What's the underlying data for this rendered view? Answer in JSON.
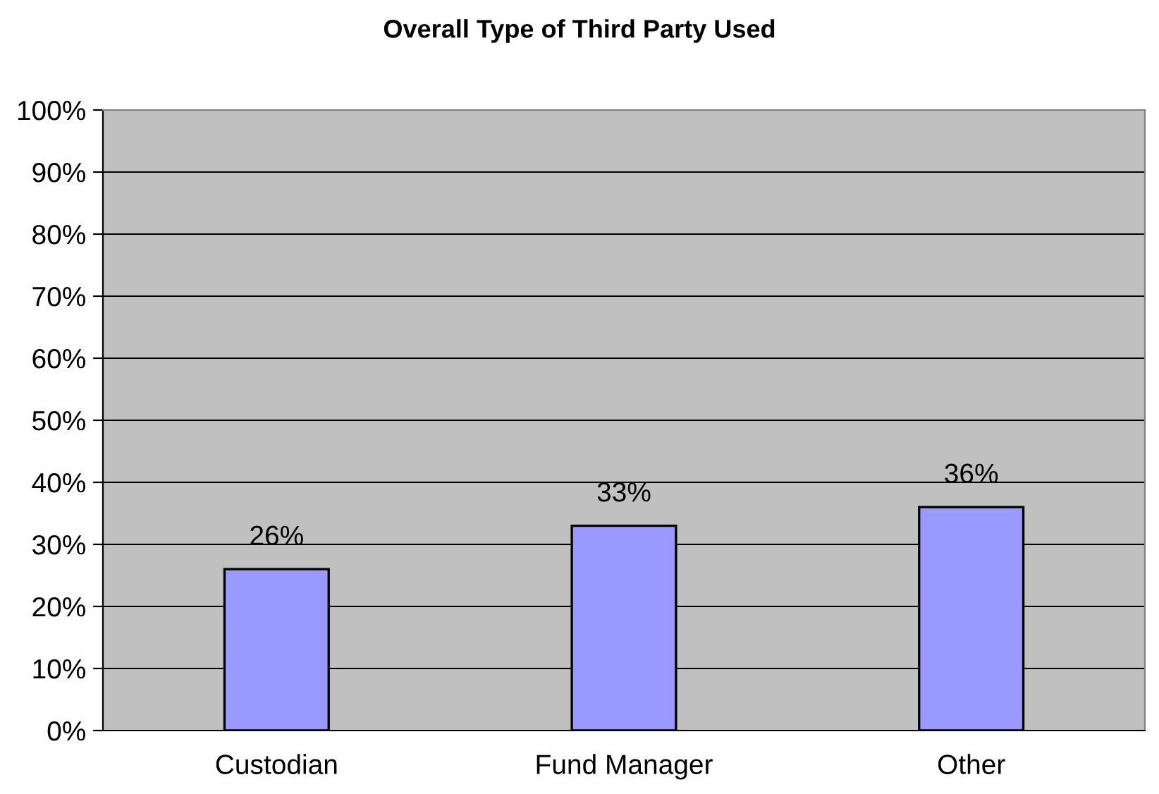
{
  "chart_data": {
    "type": "bar",
    "title": "Overall Type of Third Party Used",
    "categories": [
      "Custodian",
      "Fund Manager",
      "Other"
    ],
    "values": [
      26,
      33,
      36
    ],
    "value_labels": [
      "26%",
      "33%",
      "36%"
    ],
    "color": "#9999ff",
    "ylim": [
      0,
      100
    ],
    "yticks": [
      {
        "value": 0,
        "label": "0%"
      },
      {
        "value": 10,
        "label": "10%"
      },
      {
        "value": 20,
        "label": "20%"
      },
      {
        "value": 30,
        "label": "30%"
      },
      {
        "value": 40,
        "label": "40%"
      },
      {
        "value": 50,
        "label": "50%"
      },
      {
        "value": 60,
        "label": "60%"
      },
      {
        "value": 70,
        "label": "70%"
      },
      {
        "value": 80,
        "label": "80%"
      },
      {
        "value": 90,
        "label": "90%"
      },
      {
        "value": 100,
        "label": "100%"
      }
    ],
    "grid": "y"
  }
}
